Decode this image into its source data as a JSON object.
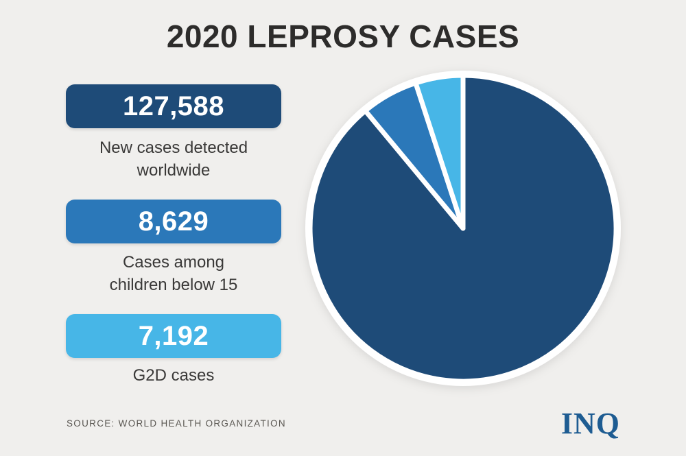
{
  "title": "2020 LEPROSY CASES",
  "stats": [
    {
      "value": "127,588",
      "label": "New cases detected\nworldwide",
      "color": "#1e4b78"
    },
    {
      "value": "8,629",
      "label": "Cases among\nchildren below 15",
      "color": "#2b78b9"
    },
    {
      "value": "7,192",
      "label": "G2D cases",
      "color": "#47b6e7"
    }
  ],
  "source": "SOURCE: WORLD HEALTH ORGANIZATION",
  "logo_text": "INQ",
  "colors": {
    "background": "#f0efed",
    "title_text": "#2d2c2b",
    "label_text": "#3a3938",
    "source_text": "#5a5752",
    "logo_text": "#1e5c92",
    "slice_separator": "#ffffff"
  },
  "chart_data": {
    "type": "pie",
    "title": "2020 LEPROSY CASES",
    "labels": [
      "New cases detected worldwide",
      "Cases among children below 15",
      "G2D cases"
    ],
    "values": [
      127588,
      8629,
      7192
    ],
    "percentages": [
      89.0,
      6.0,
      5.0
    ],
    "colors": [
      "#1e4b78",
      "#2b78b9",
      "#47b6e7"
    ],
    "start_angle_deg": 0,
    "direction": "clockwise",
    "legend": "none",
    "slice_gap_color": "#ffffff"
  }
}
